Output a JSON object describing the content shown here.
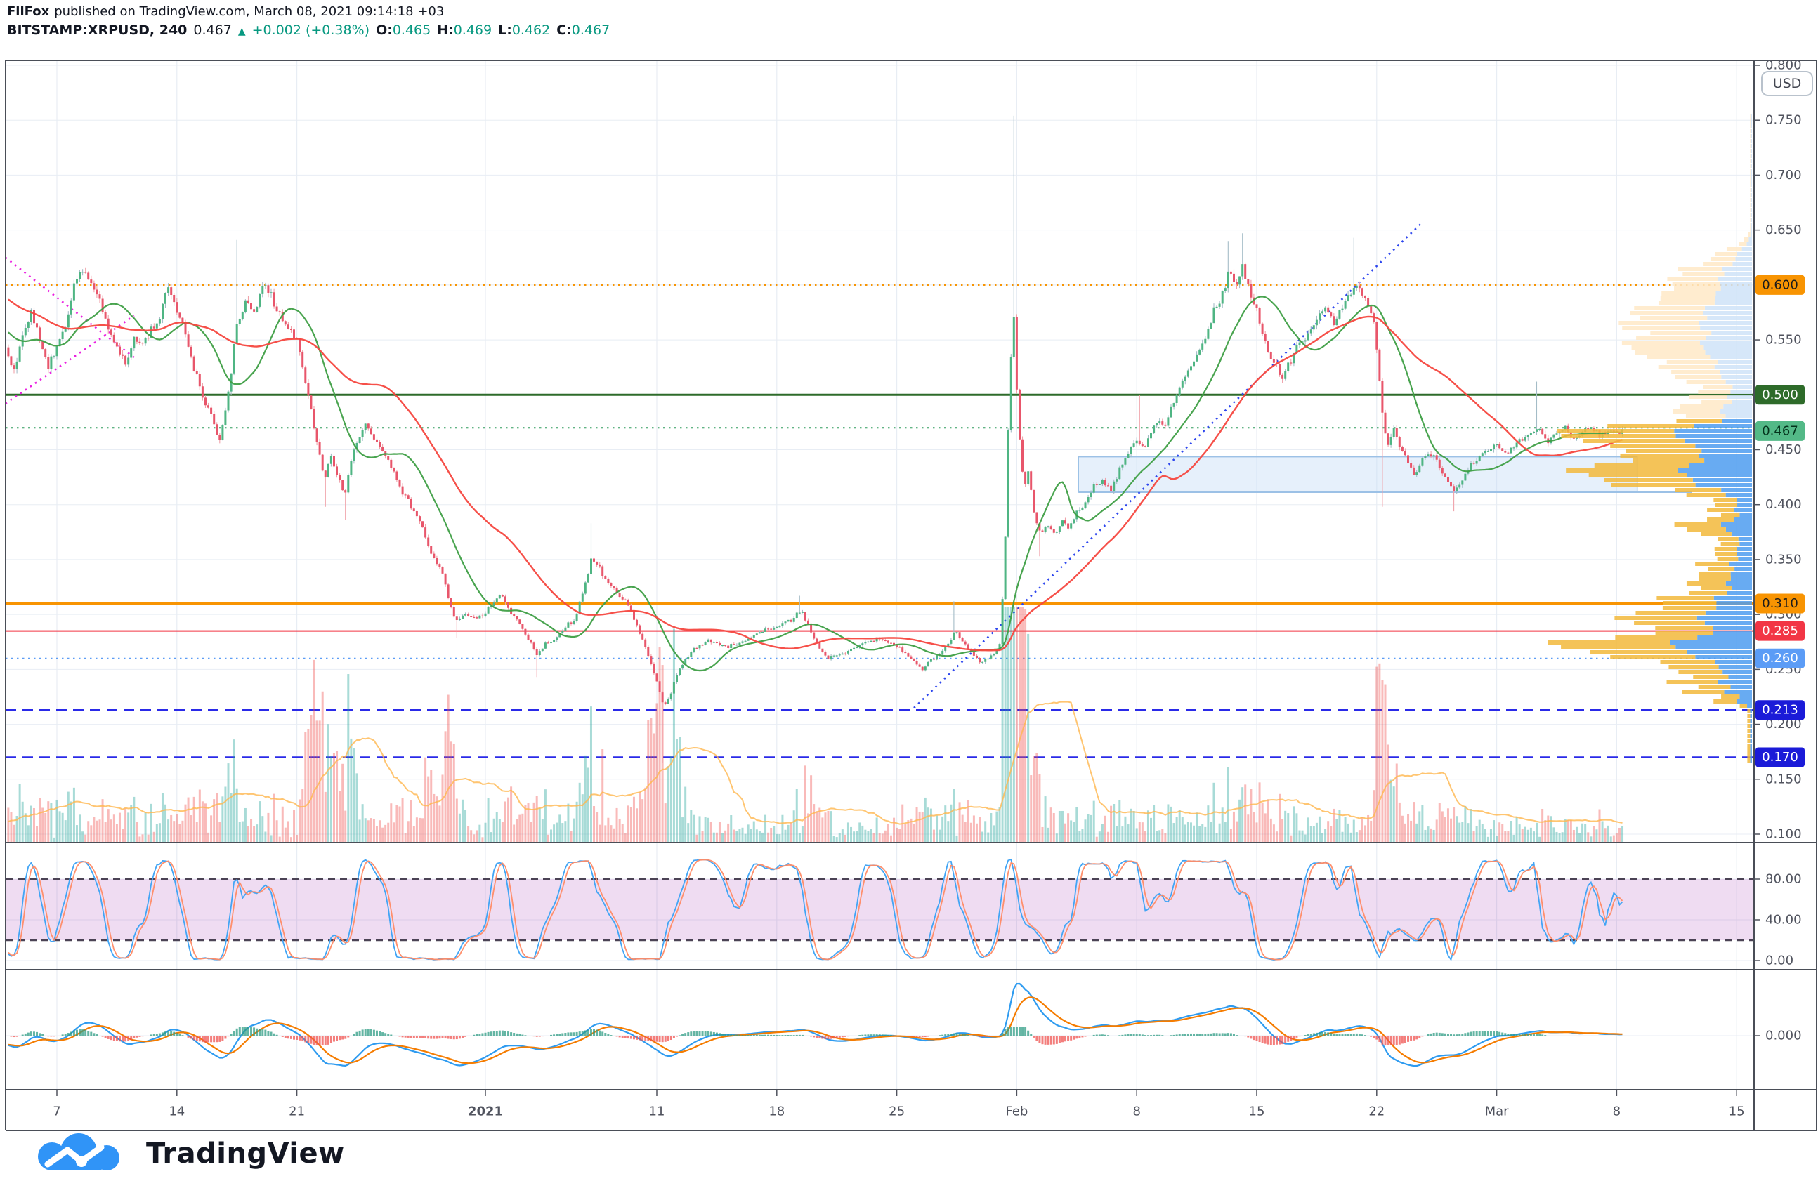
{
  "header": {
    "author": "FilFox",
    "published_text": "published on TradingView.com, March 08, 2021 09:14:18 +03",
    "symbol": "BITSTAMP:XRPUSD, 240",
    "last_price": "0.467",
    "change_arrow": "▲",
    "change_text": "+0.002 (+0.38%)",
    "o_label": "O:",
    "o_value": "0.465",
    "h_label": "H:",
    "h_value": "0.469",
    "l_label": "L:",
    "l_value": "0.462",
    "c_label": "C:",
    "c_value": "0.467",
    "up_color": "#089981",
    "text_color": "#131722"
  },
  "axis": {
    "currency_button": "USD",
    "price_ticks": [
      "0.800",
      "0.750",
      "0.700",
      "0.650",
      "0.600",
      "0.550",
      "0.500",
      "0.450",
      "0.400",
      "0.350",
      "0.300",
      "0.250",
      "0.200",
      "0.150",
      "0.100"
    ],
    "stoch_ticks": [
      "80.00",
      "40.00",
      "0.00"
    ],
    "macd_ticks": [
      "0.000"
    ],
    "time_labels": [
      {
        "day": 5,
        "label": "7"
      },
      {
        "day": 12,
        "label": "14"
      },
      {
        "day": 19,
        "label": "21"
      },
      {
        "day": 30,
        "label": "2021",
        "bold": true
      },
      {
        "day": 40,
        "label": "11"
      },
      {
        "day": 47,
        "label": "18"
      },
      {
        "day": 54,
        "label": "25"
      },
      {
        "day": 61,
        "label": "Feb"
      },
      {
        "day": 68,
        "label": "8"
      },
      {
        "day": 75,
        "label": "15"
      },
      {
        "day": 82,
        "label": "22"
      },
      {
        "day": 89,
        "label": "Mar"
      },
      {
        "day": 96,
        "label": "8"
      },
      {
        "day": 103,
        "label": "15"
      }
    ]
  },
  "palette": {
    "grid": "#e8edf4",
    "frame": "#4a4e57",
    "axis_text": "#50535e",
    "candle_up": "#4fb583",
    "candle_down": "#e8566b",
    "wick_up": "#a4bcc7",
    "wick_down": "#f0a2aa",
    "ma_fast": "#3f9f46",
    "ma_slow": "#f5473f",
    "vol_up": "#26a69a",
    "vol_down": "#ef5350",
    "vol_ma": "#ffb74d",
    "stoch_k": "#42a5f5",
    "stoch_d": "#ff8a65",
    "stoch_band": "#9c27b0",
    "stoch_dash": "#4b4355",
    "macd_line": "#2e9bf0",
    "macd_signal": "#f57c00",
    "hist_up": "#2f9c84",
    "hist_down": "#ef5350",
    "profile_pale_yellow": "#ffe9c7",
    "profile_pale_blue": "#cfe3f8",
    "profile_yellow": "#f2b93b",
    "profile_blue": "#4d9cf0"
  },
  "levels": [
    {
      "price": 0.6,
      "label": "0.600",
      "line": "dotted",
      "width": 2.5,
      "color": "#f89402",
      "badge_bg": "#f89402",
      "badge_fg": "#1c1c1c"
    },
    {
      "price": 0.5,
      "label": "0.500",
      "line": "solid",
      "width": 3,
      "color": "#2e6b2a",
      "badge_bg": "#2e6b2a",
      "badge_fg": "#ffffff"
    },
    {
      "price": 0.47,
      "label": "",
      "line": "dotted",
      "width": 2,
      "color": "#2f9c5c"
    },
    {
      "price": 0.31,
      "label": "0.310",
      "line": "solid",
      "width": 3,
      "color": "#f89402",
      "badge_bg": "#f89402",
      "badge_fg": "#1c1c1c"
    },
    {
      "price": 0.285,
      "label": "0.285",
      "line": "solid",
      "width": 2,
      "color": "#f23645",
      "badge_bg": "#f23645",
      "badge_fg": "#ffffff"
    },
    {
      "price": 0.26,
      "label": "0.260",
      "line": "dotted",
      "width": 2,
      "color": "#5b9cf6",
      "badge_bg": "#5b9cf6",
      "badge_fg": "#ffffff"
    },
    {
      "price": 0.213,
      "label": "0.213",
      "line": "dashed",
      "width": 2.5,
      "color": "#2a2ae8",
      "badge_bg": "#1b1bd8",
      "badge_fg": "#ffffff"
    },
    {
      "price": 0.17,
      "label": "0.170",
      "line": "dashed",
      "width": 2.5,
      "color": "#2a2ae8",
      "badge_bg": "#1b1bd8",
      "badge_fg": "#ffffff"
    },
    {
      "price": 0.467,
      "label": "0.467",
      "line": "none",
      "badge_bg": "#53b987",
      "badge_fg": "#04331c",
      "is_current": true
    }
  ],
  "chart_data": {
    "type": "candlestick",
    "title": "BITSTAMP:XRPUSD 4h",
    "interval_minutes": 240,
    "ylim": [
      0.1,
      0.8
    ],
    "x_range": [
      "2020-12-04",
      "2021-03-16"
    ],
    "last_bar": {
      "open": 0.465,
      "high": 0.469,
      "low": 0.462,
      "close": 0.467
    },
    "price_keypoints": [
      [
        -12,
        0.6
      ],
      [
        -6,
        0.63
      ],
      [
        -2,
        0.58
      ],
      [
        2,
        0.545
      ],
      [
        2.5,
        0.52
      ],
      [
        3,
        0.555
      ],
      [
        3.5,
        0.575
      ],
      [
        4,
        0.55
      ],
      [
        4.5,
        0.525
      ],
      [
        5,
        0.545
      ],
      [
        5.5,
        0.56
      ],
      [
        6,
        0.6
      ],
      [
        6.5,
        0.615
      ],
      [
        7,
        0.6
      ],
      [
        7.5,
        0.585
      ],
      [
        8,
        0.56
      ],
      [
        8.5,
        0.545
      ],
      [
        9,
        0.53
      ],
      [
        9.5,
        0.55
      ],
      [
        10,
        0.545
      ],
      [
        10.5,
        0.56
      ],
      [
        11,
        0.57
      ],
      [
        11.4,
        0.6
      ],
      [
        11.8,
        0.585
      ],
      [
        12.2,
        0.57
      ],
      [
        13,
        0.525
      ],
      [
        13.5,
        0.5
      ],
      [
        14,
        0.48
      ],
      [
        14.5,
        0.458
      ],
      [
        15,
        0.5
      ],
      [
        15.5,
        0.565
      ],
      [
        16,
        0.585
      ],
      [
        16.5,
        0.575
      ],
      [
        17,
        0.6
      ],
      [
        17.5,
        0.59
      ],
      [
        18,
        0.572
      ],
      [
        18.5,
        0.56
      ],
      [
        19,
        0.55
      ],
      [
        19.4,
        0.52
      ],
      [
        19.8,
        0.487
      ],
      [
        20.2,
        0.455
      ],
      [
        20.6,
        0.425
      ],
      [
        21,
        0.443
      ],
      [
        21.4,
        0.425
      ],
      [
        21.8,
        0.41
      ],
      [
        22.2,
        0.445
      ],
      [
        22.6,
        0.462
      ],
      [
        23,
        0.475
      ],
      [
        23.4,
        0.465
      ],
      [
        23.8,
        0.452
      ],
      [
        24.4,
        0.44
      ],
      [
        25,
        0.416
      ],
      [
        25.6,
        0.4
      ],
      [
        26.2,
        0.383
      ],
      [
        26.8,
        0.358
      ],
      [
        27.4,
        0.342
      ],
      [
        28,
        0.305
      ],
      [
        28.4,
        0.292
      ],
      [
        28.8,
        0.302
      ],
      [
        29.4,
        0.296
      ],
      [
        30,
        0.302
      ],
      [
        30.6,
        0.312
      ],
      [
        31,
        0.318
      ],
      [
        31.5,
        0.3
      ],
      [
        32,
        0.292
      ],
      [
        32.6,
        0.275
      ],
      [
        33,
        0.262
      ],
      [
        33.4,
        0.272
      ],
      [
        34,
        0.278
      ],
      [
        34.6,
        0.288
      ],
      [
        35.2,
        0.296
      ],
      [
        35.8,
        0.325
      ],
      [
        36.2,
        0.352
      ],
      [
        36.6,
        0.344
      ],
      [
        37,
        0.332
      ],
      [
        37.6,
        0.322
      ],
      [
        38.2,
        0.312
      ],
      [
        38.8,
        0.292
      ],
      [
        39.4,
        0.268
      ],
      [
        40,
        0.238
      ],
      [
        40.4,
        0.216
      ],
      [
        40.8,
        0.228
      ],
      [
        41.2,
        0.246
      ],
      [
        41.8,
        0.262
      ],
      [
        42.4,
        0.272
      ],
      [
        43,
        0.276
      ],
      [
        44,
        0.27
      ],
      [
        45,
        0.276
      ],
      [
        46,
        0.284
      ],
      [
        47,
        0.29
      ],
      [
        48,
        0.296
      ],
      [
        48.4,
        0.305
      ],
      [
        48.8,
        0.292
      ],
      [
        49.4,
        0.272
      ],
      [
        50,
        0.26
      ],
      [
        51,
        0.266
      ],
      [
        52,
        0.272
      ],
      [
        53,
        0.278
      ],
      [
        54,
        0.272
      ],
      [
        55,
        0.258
      ],
      [
        55.5,
        0.25
      ],
      [
        56,
        0.258
      ],
      [
        57,
        0.272
      ],
      [
        57.4,
        0.285
      ],
      [
        57.8,
        0.276
      ],
      [
        58.4,
        0.263
      ],
      [
        59,
        0.256
      ],
      [
        59.5,
        0.262
      ],
      [
        60,
        0.272
      ],
      [
        60.3,
        0.35
      ],
      [
        60.55,
        0.5
      ],
      [
        60.8,
        0.58
      ],
      [
        61.1,
        0.47
      ],
      [
        61.4,
        0.415
      ],
      [
        61.7,
        0.43
      ],
      [
        62,
        0.395
      ],
      [
        62.4,
        0.372
      ],
      [
        62.8,
        0.382
      ],
      [
        63.2,
        0.372
      ],
      [
        63.6,
        0.386
      ],
      [
        64,
        0.38
      ],
      [
        64.5,
        0.392
      ],
      [
        65,
        0.403
      ],
      [
        65.5,
        0.416
      ],
      [
        66,
        0.422
      ],
      [
        66.5,
        0.414
      ],
      [
        67,
        0.432
      ],
      [
        67.5,
        0.446
      ],
      [
        68,
        0.458
      ],
      [
        68.4,
        0.452
      ],
      [
        68.8,
        0.464
      ],
      [
        69.2,
        0.476
      ],
      [
        69.6,
        0.468
      ],
      [
        70,
        0.49
      ],
      [
        70.5,
        0.506
      ],
      [
        71,
        0.52
      ],
      [
        71.5,
        0.536
      ],
      [
        72,
        0.552
      ],
      [
        72.5,
        0.576
      ],
      [
        73,
        0.592
      ],
      [
        73.4,
        0.614
      ],
      [
        73.8,
        0.598
      ],
      [
        74.2,
        0.618
      ],
      [
        74.6,
        0.592
      ],
      [
        75,
        0.576
      ],
      [
        75.5,
        0.548
      ],
      [
        76,
        0.53
      ],
      [
        76.5,
        0.516
      ],
      [
        77,
        0.532
      ],
      [
        77.5,
        0.548
      ],
      [
        78,
        0.556
      ],
      [
        78.5,
        0.568
      ],
      [
        79,
        0.578
      ],
      [
        79.5,
        0.566
      ],
      [
        80,
        0.58
      ],
      [
        80.5,
        0.592
      ],
      [
        81,
        0.6
      ],
      [
        81.4,
        0.585
      ],
      [
        81.8,
        0.568
      ],
      [
        82.1,
        0.525
      ],
      [
        82.4,
        0.47
      ],
      [
        82.7,
        0.455
      ],
      [
        83,
        0.468
      ],
      [
        83.4,
        0.452
      ],
      [
        83.8,
        0.44
      ],
      [
        84.2,
        0.428
      ],
      [
        84.6,
        0.438
      ],
      [
        85,
        0.447
      ],
      [
        85.5,
        0.44
      ],
      [
        86,
        0.426
      ],
      [
        86.5,
        0.412
      ],
      [
        87,
        0.422
      ],
      [
        87.5,
        0.436
      ],
      [
        88,
        0.442
      ],
      [
        88.5,
        0.45
      ],
      [
        89,
        0.456
      ],
      [
        89.5,
        0.448
      ],
      [
        90,
        0.453
      ],
      [
        90.5,
        0.461
      ],
      [
        91,
        0.466
      ],
      [
        91.3,
        0.472
      ],
      [
        91.7,
        0.462
      ],
      [
        92,
        0.458
      ],
      [
        92.5,
        0.466
      ],
      [
        93,
        0.469
      ],
      [
        93.5,
        0.462
      ],
      [
        94,
        0.466
      ],
      [
        94.5,
        0.469
      ],
      [
        95,
        0.463
      ],
      [
        95.5,
        0.467
      ],
      [
        96,
        0.464
      ],
      [
        96.4,
        0.467
      ]
    ],
    "wick_spikes": [
      {
        "day": 15.5,
        "high": 0.641
      },
      {
        "day": 20.6,
        "low": 0.398
      },
      {
        "day": 21.8,
        "low": 0.386
      },
      {
        "day": 28.4,
        "low": 0.279
      },
      {
        "day": 33,
        "low": 0.243
      },
      {
        "day": 36.2,
        "high": 0.383
      },
      {
        "day": 40.4,
        "low": 0.165
      },
      {
        "day": 48.4,
        "high": 0.317
      },
      {
        "day": 57.4,
        "high": 0.312
      },
      {
        "day": 60.8,
        "high": 0.754
      },
      {
        "day": 62.4,
        "low": 0.353
      },
      {
        "day": 68.2,
        "high": 0.5
      },
      {
        "day": 73.4,
        "high": 0.64
      },
      {
        "day": 74.2,
        "high": 0.647
      },
      {
        "day": 80.6,
        "high": 0.643
      },
      {
        "day": 82.4,
        "low": 0.398
      },
      {
        "day": 86.5,
        "low": 0.394
      },
      {
        "day": 91.3,
        "high": 0.512
      }
    ],
    "volume_spikes": [
      [
        19.4,
        22.6,
        2.2
      ],
      [
        26.5,
        29,
        1.8
      ],
      [
        31,
        31.6,
        1.3
      ],
      [
        35.8,
        37,
        1.6
      ],
      [
        39.4,
        41.4,
        2.1
      ],
      [
        48,
        49,
        1.35
      ],
      [
        55,
        56,
        1.2
      ],
      [
        60.2,
        61.8,
        3.8
      ],
      [
        62,
        63.2,
        1.7
      ],
      [
        67.8,
        68.6,
        1.3
      ],
      [
        73,
        75,
        1.3
      ],
      [
        81.8,
        83.2,
        1.8
      ],
      [
        86,
        87,
        1.25
      ],
      [
        91,
        91.7,
        1.25
      ]
    ],
    "indicators": {
      "ma_fast_period": 20,
      "ma_slow_period": 55,
      "stochastic": {
        "k": 14,
        "smooth": 3,
        "d": 3,
        "upper": 80,
        "lower": 20
      },
      "macd": {
        "fast": 12,
        "slow": 26,
        "signal": 9
      }
    },
    "trendlines": [
      {
        "name": "wedge-upper",
        "style": "dotted",
        "color": "#ea1fe0",
        "points": [
          [
            2,
            0.625
          ],
          [
            9.5,
            0.534
          ]
        ]
      },
      {
        "name": "wedge-lower",
        "style": "dotted",
        "color": "#ea1fe0",
        "points": [
          [
            2,
            0.492
          ],
          [
            9.5,
            0.572
          ]
        ]
      },
      {
        "name": "rising-support",
        "style": "dotted",
        "color": "#2d46ee",
        "points": [
          [
            55,
            0.215
          ],
          [
            84.6,
            0.656
          ]
        ]
      }
    ],
    "zone": {
      "d1": 64.6,
      "d2": 97.2,
      "p_top": 0.4435,
      "p_bottom": 0.4115,
      "fill": "#c3dcf5",
      "border": "#9cc1e6",
      "underline_d2": 100.4
    }
  },
  "footer": {
    "brand": "TradingView"
  }
}
